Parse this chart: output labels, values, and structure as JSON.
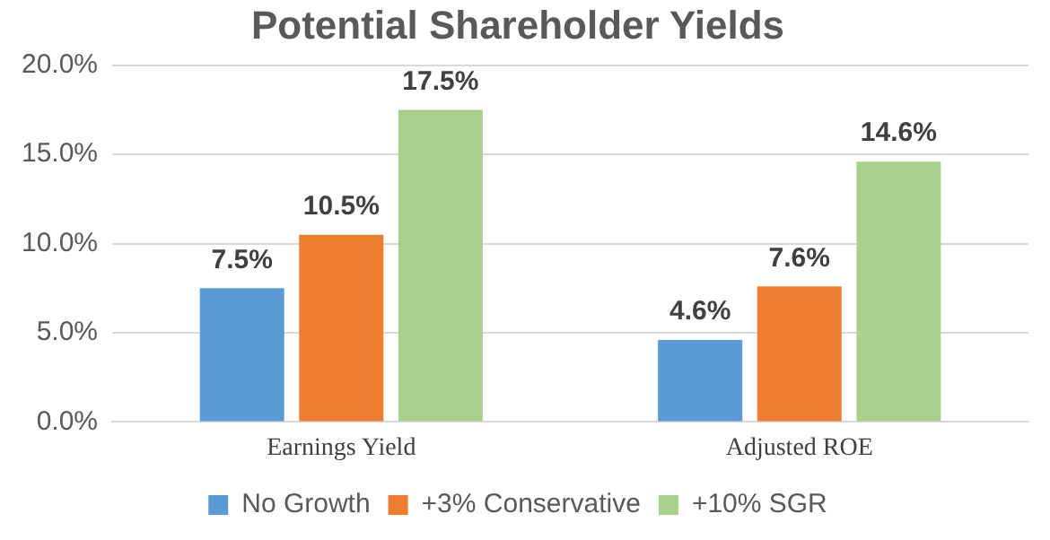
{
  "chart_data": {
    "type": "bar",
    "title": "Potential Shareholder Yields",
    "categories": [
      "Earnings Yield",
      "Adjusted ROE"
    ],
    "series": [
      {
        "name": "No Growth",
        "color": "#5b9bd5",
        "values": [
          7.5,
          4.6
        ],
        "value_labels": [
          "7.5%",
          "4.6%"
        ]
      },
      {
        "name": "+3% Conservative",
        "color": "#ed7d31",
        "values": [
          10.5,
          7.6
        ],
        "value_labels": [
          "10.5%",
          "7.6%"
        ]
      },
      {
        "name": "+10% SGR",
        "color": "#a9d18e",
        "values": [
          17.5,
          14.6
        ],
        "value_labels": [
          "17.5%",
          "14.6%"
        ]
      }
    ],
    "ylim": [
      0,
      20
    ],
    "yticks": [
      {
        "value": 0,
        "label": "0.0%"
      },
      {
        "value": 5,
        "label": "5.0%"
      },
      {
        "value": 10,
        "label": "10.0%"
      },
      {
        "value": 15,
        "label": "15.0%"
      },
      {
        "value": 20,
        "label": "20.0%"
      }
    ],
    "grid": "y",
    "legend": "bottom"
  }
}
